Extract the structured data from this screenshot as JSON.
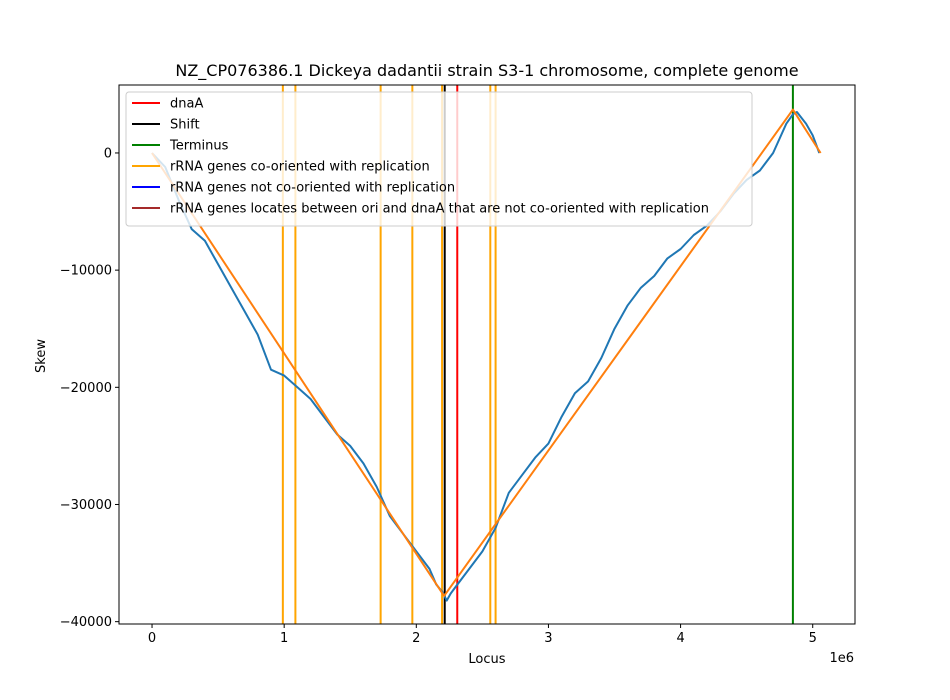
{
  "chart_data": {
    "type": "line",
    "title": "NZ_CP076386.1 Dickeya dadantii strain S3-1 chromosome, complete genome",
    "xlabel": "Locus",
    "ylabel": "Skew",
    "x_offset_label": "1e6",
    "xlim": [
      -250000,
      5320000
    ],
    "ylim": [
      -40200,
      5800
    ],
    "x_ticks": [
      0,
      1000000,
      2000000,
      3000000,
      4000000,
      5000000
    ],
    "x_tick_labels": [
      "0",
      "1",
      "2",
      "3",
      "4",
      "5"
    ],
    "y_ticks": [
      0,
      -10000,
      -20000,
      -30000,
      -40000
    ],
    "y_tick_labels": [
      "0",
      "−10000",
      "−20000",
      "−30000",
      "−40000"
    ],
    "grid": false,
    "legend_position": "top-left",
    "series": [
      {
        "name": "",
        "color": "#1f77b4",
        "x": [
          0,
          100000,
          200000,
          300000,
          400000,
          500000,
          600000,
          700000,
          800000,
          900000,
          1000000,
          1100000,
          1200000,
          1300000,
          1400000,
          1500000,
          1600000,
          1700000,
          1800000,
          1900000,
          2000000,
          2100000,
          2150000,
          2200000,
          2230000,
          2260000,
          2300000,
          2400000,
          2500000,
          2600000,
          2700000,
          2800000,
          2900000,
          3000000,
          3100000,
          3200000,
          3300000,
          3400000,
          3500000,
          3600000,
          3700000,
          3800000,
          3900000,
          4000000,
          4100000,
          4200000,
          4300000,
          4400000,
          4500000,
          4600000,
          4700000,
          4800000,
          4850000,
          4880000,
          4950000,
          5000000,
          5050000
        ],
        "y": [
          0,
          -1200,
          -4000,
          -6500,
          -7500,
          -9500,
          -11500,
          -13500,
          -15500,
          -18500,
          -19000,
          -20000,
          -21000,
          -22500,
          -24000,
          -25000,
          -26500,
          -28500,
          -31000,
          -32500,
          -34000,
          -35500,
          -36800,
          -37500,
          -38200,
          -37600,
          -37000,
          -35500,
          -34000,
          -32000,
          -29000,
          -27500,
          -26000,
          -24800,
          -22500,
          -20500,
          -19500,
          -17500,
          -15000,
          -13000,
          -11500,
          -10500,
          -9000,
          -8200,
          -7000,
          -6200,
          -5000,
          -3500,
          -2300,
          -1500,
          0,
          2500,
          3300,
          3500,
          2500,
          1500,
          0
        ]
      },
      {
        "name": "",
        "color": "#ff7f0e",
        "x": [
          0,
          2210000,
          4850000,
          5060000
        ],
        "y": [
          0,
          -37800,
          3700,
          0
        ]
      }
    ],
    "vlines": [
      {
        "group": "dnaA",
        "x": [
          2310000
        ],
        "color": "#ff0000"
      },
      {
        "group": "Shift",
        "x": [
          2215000
        ],
        "color": "#000000"
      },
      {
        "group": "Terminus",
        "x": [
          4850000
        ],
        "color": "#008000"
      },
      {
        "group": "rRNA co-oriented",
        "x": [
          990000,
          1085000,
          1730000,
          1970000,
          2195000,
          2560000,
          2600000
        ],
        "color": "#ffa500"
      }
    ],
    "legend": [
      {
        "label": "dnaA",
        "color": "#ff0000"
      },
      {
        "label": "Shift",
        "color": "#000000"
      },
      {
        "label": "Terminus",
        "color": "#008000"
      },
      {
        "label": "rRNA genes co-oriented with replication",
        "color": "#ffa500"
      },
      {
        "label": "rRNA genes not co-oriented with replication",
        "color": "#0000ff"
      },
      {
        "label": "rRNA genes locates between ori and dnaA that are not co-oriented with replication",
        "color": "#a52a2a"
      }
    ]
  }
}
